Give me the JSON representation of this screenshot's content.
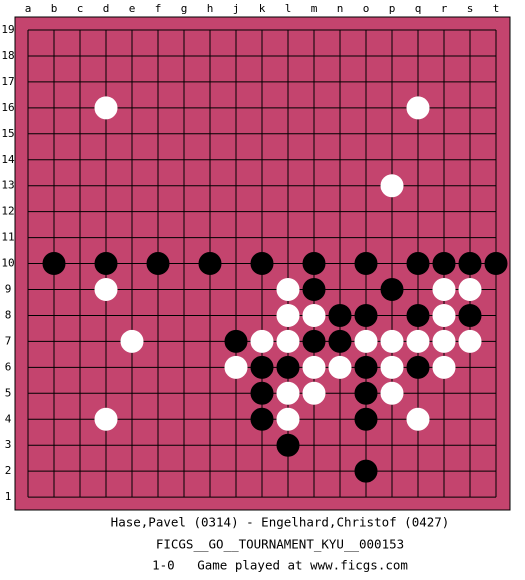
{
  "board": {
    "columns": [
      "a",
      "b",
      "c",
      "d",
      "e",
      "f",
      "g",
      "h",
      "j",
      "k",
      "l",
      "m",
      "n",
      "o",
      "p",
      "q",
      "r",
      "s",
      "t"
    ],
    "rows": [
      19,
      18,
      17,
      16,
      15,
      14,
      13,
      12,
      11,
      10,
      9,
      8,
      7,
      6,
      5,
      4,
      3,
      2,
      1
    ],
    "stones": [
      {
        "col": "d",
        "row": 16,
        "color": "white"
      },
      {
        "col": "q",
        "row": 16,
        "color": "white"
      },
      {
        "col": "p",
        "row": 13,
        "color": "white"
      },
      {
        "col": "b",
        "row": 10,
        "color": "black"
      },
      {
        "col": "d",
        "row": 10,
        "color": "black"
      },
      {
        "col": "f",
        "row": 10,
        "color": "black"
      },
      {
        "col": "h",
        "row": 10,
        "color": "black"
      },
      {
        "col": "k",
        "row": 10,
        "color": "black"
      },
      {
        "col": "m",
        "row": 10,
        "color": "black"
      },
      {
        "col": "o",
        "row": 10,
        "color": "black"
      },
      {
        "col": "q",
        "row": 10,
        "color": "black"
      },
      {
        "col": "r",
        "row": 10,
        "color": "black"
      },
      {
        "col": "s",
        "row": 10,
        "color": "black"
      },
      {
        "col": "t",
        "row": 10,
        "color": "black"
      },
      {
        "col": "d",
        "row": 9,
        "color": "white"
      },
      {
        "col": "l",
        "row": 9,
        "color": "white"
      },
      {
        "col": "m",
        "row": 9,
        "color": "black"
      },
      {
        "col": "p",
        "row": 9,
        "color": "black"
      },
      {
        "col": "r",
        "row": 9,
        "color": "white"
      },
      {
        "col": "s",
        "row": 9,
        "color": "white"
      },
      {
        "col": "l",
        "row": 8,
        "color": "white"
      },
      {
        "col": "m",
        "row": 8,
        "color": "white"
      },
      {
        "col": "n",
        "row": 8,
        "color": "black"
      },
      {
        "col": "o",
        "row": 8,
        "color": "black"
      },
      {
        "col": "q",
        "row": 8,
        "color": "black"
      },
      {
        "col": "r",
        "row": 8,
        "color": "white"
      },
      {
        "col": "s",
        "row": 8,
        "color": "black"
      },
      {
        "col": "e",
        "row": 7,
        "color": "white"
      },
      {
        "col": "j",
        "row": 7,
        "color": "black"
      },
      {
        "col": "k",
        "row": 7,
        "color": "white"
      },
      {
        "col": "l",
        "row": 7,
        "color": "white"
      },
      {
        "col": "m",
        "row": 7,
        "color": "black"
      },
      {
        "col": "n",
        "row": 7,
        "color": "black"
      },
      {
        "col": "o",
        "row": 7,
        "color": "white"
      },
      {
        "col": "p",
        "row": 7,
        "color": "white"
      },
      {
        "col": "q",
        "row": 7,
        "color": "white"
      },
      {
        "col": "r",
        "row": 7,
        "color": "white"
      },
      {
        "col": "s",
        "row": 7,
        "color": "white"
      },
      {
        "col": "j",
        "row": 6,
        "color": "white"
      },
      {
        "col": "k",
        "row": 6,
        "color": "black"
      },
      {
        "col": "l",
        "row": 6,
        "color": "black"
      },
      {
        "col": "m",
        "row": 6,
        "color": "white"
      },
      {
        "col": "n",
        "row": 6,
        "color": "white"
      },
      {
        "col": "o",
        "row": 6,
        "color": "black"
      },
      {
        "col": "p",
        "row": 6,
        "color": "white"
      },
      {
        "col": "q",
        "row": 6,
        "color": "black"
      },
      {
        "col": "r",
        "row": 6,
        "color": "white"
      },
      {
        "col": "k",
        "row": 5,
        "color": "black"
      },
      {
        "col": "l",
        "row": 5,
        "color": "white"
      },
      {
        "col": "m",
        "row": 5,
        "color": "white"
      },
      {
        "col": "o",
        "row": 5,
        "color": "black"
      },
      {
        "col": "p",
        "row": 5,
        "color": "white"
      },
      {
        "col": "d",
        "row": 4,
        "color": "white"
      },
      {
        "col": "k",
        "row": 4,
        "color": "black"
      },
      {
        "col": "l",
        "row": 4,
        "color": "white"
      },
      {
        "col": "o",
        "row": 4,
        "color": "black"
      },
      {
        "col": "q",
        "row": 4,
        "color": "white"
      },
      {
        "col": "l",
        "row": 3,
        "color": "black"
      },
      {
        "col": "o",
        "row": 2,
        "color": "black"
      }
    ]
  },
  "caption": [
    "Hase,Pavel (0314) - Engelhard,Christof (0427)",
    "FICGS__GO__TOURNAMENT_KYU__000153",
    "1-0   Game played at www.ficgs.com"
  ]
}
